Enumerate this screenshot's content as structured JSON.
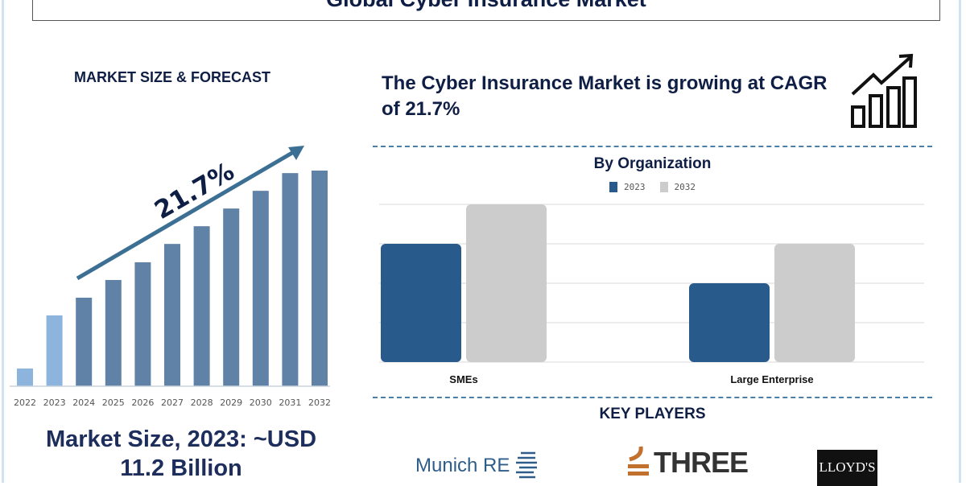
{
  "header": {
    "title": "Global Cyber Insurance Market"
  },
  "left": {
    "heading": "MARKET SIZE & FORECAST",
    "cagr_label": "21.7%",
    "market_size_line1": "Market Size, 2023: ~USD",
    "market_size_line2": "11.2 Billion"
  },
  "right": {
    "cagr_text": "The Cyber Insurance Market is growing at CAGR of 21.7%",
    "key_players_title": "KEY PLAYERS",
    "key_players": [
      "Munich RE",
      "THREE",
      "LLOYD'S"
    ]
  },
  "chart_data": [
    {
      "type": "bar",
      "title": "",
      "categories": [
        "2022",
        "2023",
        "2024",
        "2025",
        "2026",
        "2027",
        "2028",
        "2029",
        "2030",
        "2031",
        "2032"
      ],
      "values": [
        2.8,
        11.2,
        14.0,
        16.8,
        19.6,
        22.5,
        25.3,
        28.1,
        30.9,
        33.7,
        34.1
      ],
      "colors": [
        "#8db4dc",
        "#8db4dc",
        "#5f82a6",
        "#5f82a6",
        "#5f82a6",
        "#5f82a6",
        "#5f82a6",
        "#5f82a6",
        "#5f82a6",
        "#5f82a6",
        "#5f82a6"
      ],
      "annotation": "21.7%",
      "grid": false
    },
    {
      "type": "bar",
      "title": "By Organization",
      "categories": [
        "SMEs",
        "Large Enterprise"
      ],
      "series": [
        {
          "name": "2023",
          "values": [
            3,
            2
          ],
          "color": "#285a8c"
        },
        {
          "name": "2032",
          "values": [
            4,
            3
          ],
          "color": "#cccccc"
        }
      ],
      "ylim": [
        0,
        4
      ],
      "grid": true,
      "legend": "top"
    }
  ]
}
